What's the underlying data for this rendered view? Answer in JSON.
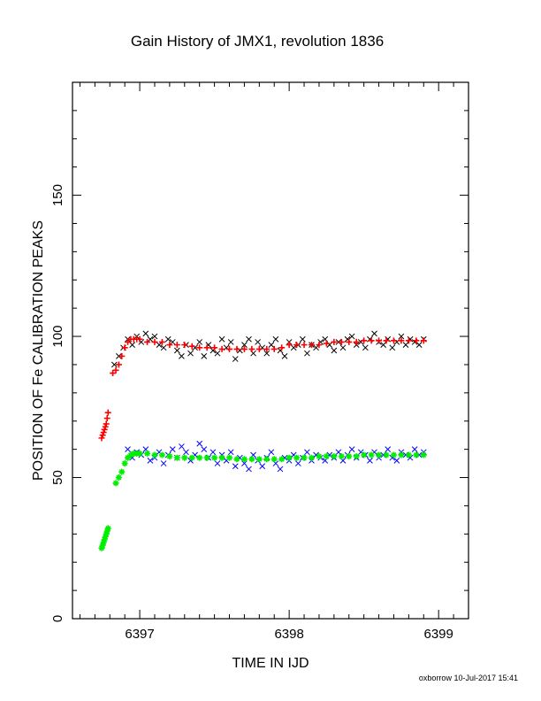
{
  "chart_data": {
    "type": "scatter",
    "title": "Gain History of JMX1, revolution 1836",
    "xlabel": "TIME IN IJD",
    "ylabel": "POSITION OF Fe CALIBRATION PEAKS",
    "xlim": [
      6396.55,
      6399.2
    ],
    "ylim": [
      0,
      190
    ],
    "x_ticks": [
      6397,
      6398,
      6399
    ],
    "y_ticks": [
      0,
      50,
      100,
      150
    ],
    "x_tick_labels": [
      "6397",
      "6398",
      "6399"
    ],
    "y_tick_labels": [
      "0",
      "50",
      "100",
      "150"
    ],
    "grid": false,
    "series": [
      {
        "marker": "x",
        "color": "#000000",
        "x": [
          6396.83,
          6396.86,
          6396.89,
          6396.92,
          6396.95,
          6396.98,
          6397.01,
          6397.04,
          6397.07,
          6397.1,
          6397.13,
          6397.16,
          6397.19,
          6397.22,
          6397.25,
          6397.28,
          6397.31,
          6397.34,
          6397.37,
          6397.4,
          6397.43,
          6397.46,
          6397.49,
          6397.52,
          6397.55,
          6397.58,
          6397.61,
          6397.64,
          6397.67,
          6397.7,
          6397.73,
          6397.76,
          6397.79,
          6397.82,
          6397.85,
          6397.88,
          6397.91,
          6397.94,
          6397.97,
          6398.0,
          6398.03,
          6398.06,
          6398.09,
          6398.12,
          6398.15,
          6398.18,
          6398.21,
          6398.24,
          6398.27,
          6398.3,
          6398.33,
          6398.36,
          6398.39,
          6398.42,
          6398.45,
          6398.48,
          6398.51,
          6398.54,
          6398.57,
          6398.6,
          6398.63,
          6398.66,
          6398.69,
          6398.72,
          6398.75,
          6398.78,
          6398.81,
          6398.84,
          6398.87,
          6398.9
        ],
        "y": [
          90,
          93,
          96,
          99,
          97,
          100,
          98,
          101,
          99,
          100,
          97,
          96,
          99,
          98,
          95,
          93,
          97,
          94,
          96,
          98,
          93,
          97,
          95,
          94,
          99,
          96,
          98,
          92,
          95,
          97,
          99,
          94,
          98,
          96,
          94,
          97,
          99,
          95,
          93,
          98,
          96,
          97,
          99,
          94,
          97,
          96,
          98,
          99,
          97,
          95,
          98,
          96,
          99,
          100,
          97,
          98,
          96,
          99,
          101,
          98,
          97,
          99,
          96,
          98,
          100,
          97,
          99,
          98,
          97,
          99
        ]
      },
      {
        "marker": "x",
        "color": "#0000ff",
        "x": [
          6396.92,
          6396.95,
          6396.98,
          6397.01,
          6397.04,
          6397.07,
          6397.1,
          6397.13,
          6397.16,
          6397.19,
          6397.22,
          6397.25,
          6397.28,
          6397.31,
          6397.34,
          6397.37,
          6397.4,
          6397.43,
          6397.46,
          6397.49,
          6397.52,
          6397.55,
          6397.58,
          6397.61,
          6397.64,
          6397.67,
          6397.7,
          6397.73,
          6397.76,
          6397.79,
          6397.82,
          6397.85,
          6397.88,
          6397.91,
          6397.94,
          6397.97,
          6398.0,
          6398.03,
          6398.06,
          6398.09,
          6398.12,
          6398.15,
          6398.18,
          6398.21,
          6398.24,
          6398.27,
          6398.3,
          6398.33,
          6398.36,
          6398.39,
          6398.42,
          6398.45,
          6398.48,
          6398.51,
          6398.54,
          6398.57,
          6398.6,
          6398.63,
          6398.66,
          6398.69,
          6398.72,
          6398.75,
          6398.78,
          6398.81,
          6398.84,
          6398.87,
          6398.9
        ],
        "y": [
          60,
          57,
          59,
          58,
          60,
          56,
          57,
          59,
          55,
          58,
          60,
          57,
          61,
          59,
          56,
          58,
          62,
          60,
          57,
          59,
          55,
          58,
          56,
          59,
          54,
          57,
          55,
          53,
          58,
          56,
          54,
          57,
          59,
          55,
          53,
          57,
          56,
          58,
          55,
          57,
          59,
          56,
          58,
          57,
          56,
          58,
          57,
          59,
          56,
          58,
          60,
          57,
          59,
          58,
          56,
          59,
          57,
          58,
          60,
          57,
          56,
          59,
          58,
          57,
          60,
          58,
          59
        ]
      },
      {
        "marker": "+",
        "color": "#ff0000",
        "x": [
          6396.745,
          6396.752,
          6396.758,
          6396.764,
          6396.77,
          6396.776,
          6396.782,
          6396.788,
          6396.82,
          6396.84,
          6396.86,
          6396.88,
          6396.9,
          6396.92,
          6396.94,
          6396.96,
          6396.98,
          6397.0,
          6397.05,
          6397.1,
          6397.15,
          6397.2,
          6397.25,
          6397.3,
          6397.35,
          6397.4,
          6397.45,
          6397.5,
          6397.55,
          6397.6,
          6397.65,
          6397.7,
          6397.75,
          6397.8,
          6397.85,
          6397.9,
          6397.95,
          6398.0,
          6398.05,
          6398.1,
          6398.15,
          6398.2,
          6398.25,
          6398.3,
          6398.35,
          6398.4,
          6398.45,
          6398.5,
          6398.55,
          6398.6,
          6398.65,
          6398.7,
          6398.75,
          6398.8,
          6398.85,
          6398.9
        ],
        "y": [
          64,
          65,
          66,
          67,
          68,
          69,
          71,
          73,
          87,
          88,
          90,
          93,
          96,
          98,
          99,
          99,
          99,
          99,
          98,
          98,
          98,
          97,
          97,
          97,
          96.5,
          96,
          96,
          96,
          95.5,
          95.5,
          95.5,
          95.5,
          95.5,
          95.5,
          95.5,
          95.5,
          96,
          97,
          97,
          97,
          97,
          97,
          97.5,
          98,
          98,
          98,
          98,
          98.5,
          98.5,
          98.5,
          98.5,
          98.5,
          98.5,
          98.5,
          98.5,
          98.5
        ]
      },
      {
        "marker": "*",
        "color": "#00ee00",
        "x": [
          6396.745,
          6396.752,
          6396.758,
          6396.764,
          6396.77,
          6396.776,
          6396.782,
          6396.788,
          6396.84,
          6396.86,
          6396.88,
          6396.9,
          6396.92,
          6396.94,
          6396.96,
          6396.98,
          6397.0,
          6397.05,
          6397.1,
          6397.15,
          6397.2,
          6397.25,
          6397.3,
          6397.35,
          6397.4,
          6397.45,
          6397.5,
          6397.55,
          6397.6,
          6397.65,
          6397.7,
          6397.75,
          6397.8,
          6397.85,
          6397.9,
          6397.95,
          6398.0,
          6398.05,
          6398.1,
          6398.15,
          6398.2,
          6398.25,
          6398.3,
          6398.35,
          6398.4,
          6398.45,
          6398.5,
          6398.55,
          6398.6,
          6398.65,
          6398.7,
          6398.75,
          6398.8,
          6398.85,
          6398.9
        ],
        "y": [
          25,
          26,
          27,
          28,
          29,
          30,
          31,
          32,
          48,
          50,
          52,
          55,
          57,
          58,
          58.5,
          58.5,
          58.5,
          58.5,
          58,
          58,
          57.5,
          57,
          57,
          57,
          57,
          57,
          57,
          57,
          57,
          56.5,
          56.5,
          56.5,
          56.5,
          56.5,
          56.5,
          56.5,
          57,
          57,
          57,
          57,
          57.5,
          57.5,
          57.5,
          57.5,
          57.5,
          57.5,
          58,
          58,
          58,
          58,
          58,
          58,
          58,
          58,
          58
        ]
      }
    ]
  },
  "footer": {
    "credit": "oxborrow 10-Jul-2017 15:41"
  }
}
